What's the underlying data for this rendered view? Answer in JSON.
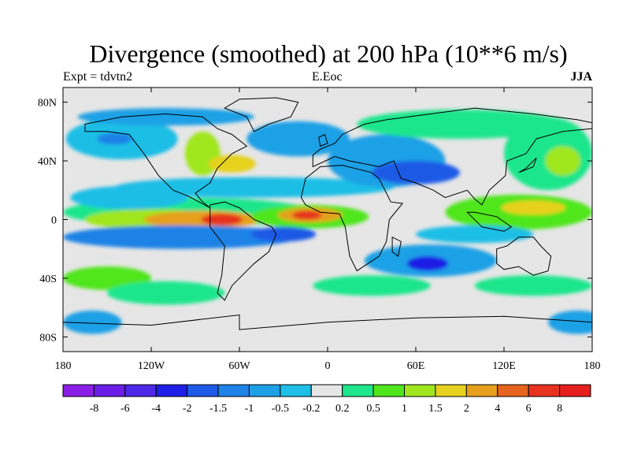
{
  "title": "Divergence (smoothed) at 200 hPa (10**6 m/s)",
  "left_subtitle": "Expt = tdvtn2",
  "center_subtitle": "E.Eoc",
  "right_subtitle": "JJA",
  "y_ticks": [
    {
      "label": "80N",
      "lat": 80
    },
    {
      "label": "40N",
      "lat": 40
    },
    {
      "label": "0",
      "lat": 0
    },
    {
      "label": "40S",
      "lat": -40
    },
    {
      "label": "80S",
      "lat": -80
    }
  ],
  "x_ticks": [
    {
      "label": "180",
      "lon": -180
    },
    {
      "label": "120W",
      "lon": -120
    },
    {
      "label": "60W",
      "lon": -60
    },
    {
      "label": "0",
      "lon": 0
    },
    {
      "label": "60E",
      "lon": 60
    },
    {
      "label": "120E",
      "lon": 120
    },
    {
      "label": "180",
      "lon": 180
    }
  ],
  "colorbar": {
    "colors": [
      "#8a1ee6",
      "#6a1ee6",
      "#4d28e6",
      "#1e1ee6",
      "#1e5ae6",
      "#1e82e6",
      "#1ea0e6",
      "#1ebee6",
      "#e6e6e6",
      "#1ee68c",
      "#50e61e",
      "#a0e61e",
      "#e6d21e",
      "#e6a01e",
      "#e6641e",
      "#e6321e",
      "#e61e1e"
    ],
    "labels": [
      "-8",
      "-6",
      "-4",
      "-2",
      "-1.5",
      "-1",
      "-0.5",
      "-0.2",
      "0.2",
      "0.5",
      "1",
      "1.5",
      "2",
      "4",
      "6",
      "8"
    ]
  },
  "bg_color": "#e6e6e6",
  "features": [
    {
      "lon": -95,
      "lat": 5,
      "rx": 85,
      "ry": 10,
      "c": 9
    },
    {
      "lon": -120,
      "lat": 0,
      "rx": 45,
      "ry": 7,
      "c": 11
    },
    {
      "lon": -85,
      "lat": 0,
      "rx": 40,
      "ry": 6,
      "c": 13
    },
    {
      "lon": -72,
      "lat": 0,
      "rx": 14,
      "ry": 4,
      "c": 15
    },
    {
      "lon": -12,
      "lat": 2,
      "rx": 40,
      "ry": 8,
      "c": 10
    },
    {
      "lon": -12,
      "lat": 3,
      "rx": 22,
      "ry": 5,
      "c": 13
    },
    {
      "lon": -14,
      "lat": 3,
      "rx": 10,
      "ry": 3,
      "c": 15
    },
    {
      "lon": 130,
      "lat": 5,
      "rx": 50,
      "ry": 12,
      "c": 10
    },
    {
      "lon": 140,
      "lat": 8,
      "rx": 22,
      "ry": 5,
      "c": 12
    },
    {
      "lon": 150,
      "lat": 45,
      "rx": 30,
      "ry": 25,
      "c": 9
    },
    {
      "lon": 160,
      "lat": 40,
      "rx": 12,
      "ry": 10,
      "c": 11
    },
    {
      "lon": -50,
      "lat": 22,
      "rx": 95,
      "ry": 7,
      "c": 7
    },
    {
      "lon": -100,
      "lat": -12,
      "rx": 80,
      "ry": 8,
      "c": 5
    },
    {
      "lon": -30,
      "lat": -10,
      "rx": 22,
      "ry": 5,
      "c": 4
    },
    {
      "lon": 70,
      "lat": -28,
      "rx": 45,
      "ry": 11,
      "c": 6
    },
    {
      "lon": 68,
      "lat": -30,
      "rx": 14,
      "ry": 5,
      "c": 3
    },
    {
      "lon": 40,
      "lat": 40,
      "rx": 40,
      "ry": 18,
      "c": 6
    },
    {
      "lon": 60,
      "lat": 32,
      "rx": 30,
      "ry": 8,
      "c": 4
    },
    {
      "lon": -140,
      "lat": 55,
      "rx": 38,
      "ry": 14,
      "c": 7
    },
    {
      "lon": -145,
      "lat": 55,
      "rx": 12,
      "ry": 4,
      "c": 5
    },
    {
      "lon": 90,
      "lat": 65,
      "rx": 70,
      "ry": 10,
      "c": 9
    },
    {
      "lon": -20,
      "lat": 55,
      "rx": 35,
      "ry": 12,
      "c": 6
    },
    {
      "lon": -85,
      "lat": 45,
      "rx": 12,
      "ry": 15,
      "c": 11
    },
    {
      "lon": -65,
      "lat": 38,
      "rx": 16,
      "ry": 6,
      "c": 12
    },
    {
      "lon": -150,
      "lat": -40,
      "rx": 30,
      "ry": 8,
      "c": 10
    },
    {
      "lon": -110,
      "lat": -50,
      "rx": 40,
      "ry": 8,
      "c": 9
    },
    {
      "lon": 30,
      "lat": -45,
      "rx": 40,
      "ry": 7,
      "c": 9
    },
    {
      "lon": 140,
      "lat": -45,
      "rx": 40,
      "ry": 7,
      "c": 9
    },
    {
      "lon": -160,
      "lat": -70,
      "rx": 20,
      "ry": 8,
      "c": 6
    },
    {
      "lon": 170,
      "lat": -70,
      "rx": 20,
      "ry": 8,
      "c": 6
    },
    {
      "lon": -110,
      "lat": 70,
      "rx": 60,
      "ry": 6,
      "c": 6
    },
    {
      "lon": -135,
      "lat": 15,
      "rx": 40,
      "ry": 8,
      "c": 7
    },
    {
      "lon": 100,
      "lat": -10,
      "rx": 40,
      "ry": 6,
      "c": 7
    }
  ],
  "continents": [
    [
      [
        -165,
        65
      ],
      [
        -140,
        70
      ],
      [
        -110,
        72
      ],
      [
        -85,
        70
      ],
      [
        -75,
        62
      ],
      [
        -65,
        58
      ],
      [
        -55,
        50
      ],
      [
        -65,
        45
      ],
      [
        -75,
        35
      ],
      [
        -80,
        25
      ],
      [
        -90,
        18
      ],
      [
        -85,
        12
      ],
      [
        -80,
        8
      ],
      [
        -95,
        16
      ],
      [
        -105,
        20
      ],
      [
        -115,
        30
      ],
      [
        -125,
        45
      ],
      [
        -135,
        58
      ],
      [
        -150,
        60
      ],
      [
        -165,
        60
      ]
    ],
    [
      [
        -80,
        10
      ],
      [
        -70,
        12
      ],
      [
        -60,
        8
      ],
      [
        -50,
        0
      ],
      [
        -38,
        -5
      ],
      [
        -35,
        -10
      ],
      [
        -40,
        -22
      ],
      [
        -50,
        -30
      ],
      [
        -58,
        -38
      ],
      [
        -65,
        -45
      ],
      [
        -70,
        -55
      ],
      [
        -75,
        -50
      ],
      [
        -72,
        -38
      ],
      [
        -70,
        -18
      ],
      [
        -80,
        -5
      ]
    ],
    [
      [
        -18,
        15
      ],
      [
        -15,
        28
      ],
      [
        -5,
        36
      ],
      [
        10,
        37
      ],
      [
        30,
        32
      ],
      [
        35,
        28
      ],
      [
        43,
        12
      ],
      [
        51,
        11
      ],
      [
        42,
        0
      ],
      [
        40,
        -15
      ],
      [
        35,
        -25
      ],
      [
        20,
        -35
      ],
      [
        15,
        -25
      ],
      [
        12,
        -5
      ],
      [
        8,
        4
      ],
      [
        -5,
        5
      ],
      [
        -15,
        10
      ]
    ],
    [
      [
        -10,
        36
      ],
      [
        -10,
        44
      ],
      [
        -5,
        48
      ],
      [
        5,
        52
      ],
      [
        10,
        58
      ],
      [
        25,
        65
      ],
      [
        40,
        68
      ],
      [
        70,
        72
      ],
      [
        100,
        76
      ],
      [
        140,
        72
      ],
      [
        170,
        68
      ],
      [
        180,
        66
      ],
      [
        180,
        62
      ],
      [
        160,
        60
      ],
      [
        142,
        55
      ],
      [
        135,
        45
      ],
      [
        122,
        40
      ],
      [
        121,
        30
      ],
      [
        110,
        20
      ],
      [
        105,
        10
      ],
      [
        100,
        14
      ],
      [
        95,
        20
      ],
      [
        80,
        15
      ],
      [
        72,
        20
      ],
      [
        60,
        25
      ],
      [
        50,
        28
      ],
      [
        45,
        40
      ],
      [
        35,
        36
      ],
      [
        25,
        38
      ],
      [
        15,
        40
      ],
      [
        5,
        43
      ]
    ],
    [
      [
        -50,
        60
      ],
      [
        -40,
        65
      ],
      [
        -25,
        70
      ],
      [
        -20,
        80
      ],
      [
        -35,
        83
      ],
      [
        -60,
        82
      ],
      [
        -70,
        76
      ],
      [
        -55,
        70
      ]
    ],
    [
      [
        115,
        -20
      ],
      [
        122,
        -18
      ],
      [
        130,
        -12
      ],
      [
        140,
        -12
      ],
      [
        145,
        -18
      ],
      [
        152,
        -25
      ],
      [
        150,
        -35
      ],
      [
        140,
        -38
      ],
      [
        130,
        -32
      ],
      [
        120,
        -34
      ],
      [
        115,
        -30
      ]
    ],
    [
      [
        -180,
        -70
      ],
      [
        -120,
        -72
      ],
      [
        -60,
        -65
      ],
      [
        -60,
        -75
      ],
      [
        0,
        -70
      ],
      [
        60,
        -67
      ],
      [
        120,
        -66
      ],
      [
        180,
        -70
      ],
      [
        180,
        -90
      ],
      [
        -180,
        -90
      ]
    ],
    [
      [
        95,
        5
      ],
      [
        105,
        -5
      ],
      [
        120,
        -8
      ],
      [
        125,
        -5
      ],
      [
        115,
        2
      ],
      [
        100,
        5
      ]
    ],
    [
      [
        130,
        32
      ],
      [
        140,
        36
      ],
      [
        142,
        42
      ],
      [
        135,
        35
      ]
    ],
    [
      [
        -5,
        50
      ],
      [
        0,
        52
      ],
      [
        -2,
        58
      ],
      [
        -6,
        56
      ]
    ],
    [
      [
        44,
        -12
      ],
      [
        50,
        -15
      ],
      [
        48,
        -25
      ],
      [
        44,
        -22
      ]
    ]
  ]
}
